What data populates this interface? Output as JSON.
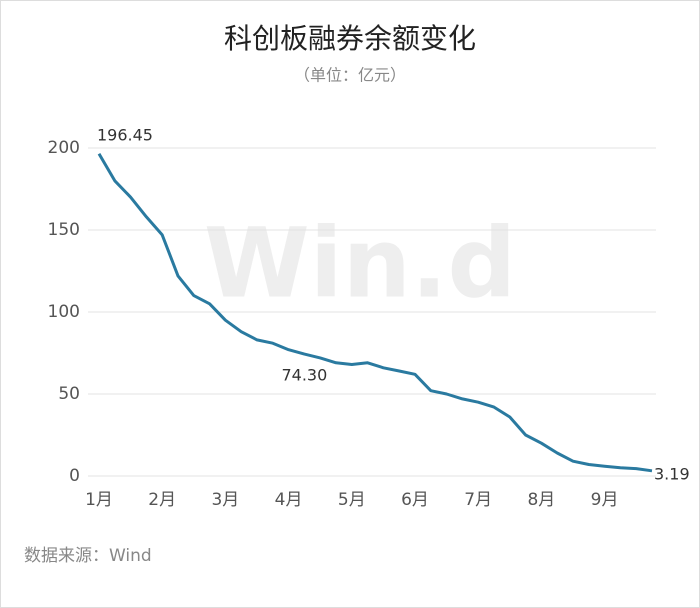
{
  "chart_data": {
    "type": "line",
    "title": "科创板融券余额变化",
    "subtitle": "（单位：亿元）",
    "watermark": "Win.d",
    "source": "数据来源：Wind",
    "categories": [
      "1月",
      null,
      null,
      null,
      "2月",
      null,
      null,
      null,
      "3月",
      null,
      null,
      null,
      "4月",
      null,
      null,
      null,
      "5月",
      null,
      null,
      null,
      "6月",
      null,
      null,
      null,
      "7月",
      null,
      null,
      null,
      "8月",
      null,
      null,
      null,
      "9月",
      null,
      null,
      null
    ],
    "series": [
      {
        "name": "融券余额",
        "color": "#2a7aa0",
        "values": [
          196.45,
          180,
          170,
          158,
          147,
          122,
          110,
          105,
          95,
          88,
          83,
          81,
          77,
          74.3,
          72,
          69,
          68,
          69,
          66,
          64,
          62,
          52,
          50,
          47,
          45,
          42,
          36,
          25,
          20,
          14,
          9,
          7,
          6,
          5,
          4.5,
          3.19
        ],
        "value_labels": [
          "196.45",
          null,
          null,
          null,
          null,
          null,
          null,
          null,
          null,
          null,
          null,
          null,
          null,
          "74.30",
          null,
          null,
          null,
          null,
          null,
          null,
          null,
          null,
          null,
          null,
          null,
          null,
          null,
          null,
          null,
          null,
          null,
          null,
          null,
          null,
          null,
          "3.19"
        ]
      }
    ],
    "ylim": [
      0,
      200
    ],
    "yticks": [
      0,
      50,
      100,
      150,
      200
    ],
    "grid": true
  }
}
